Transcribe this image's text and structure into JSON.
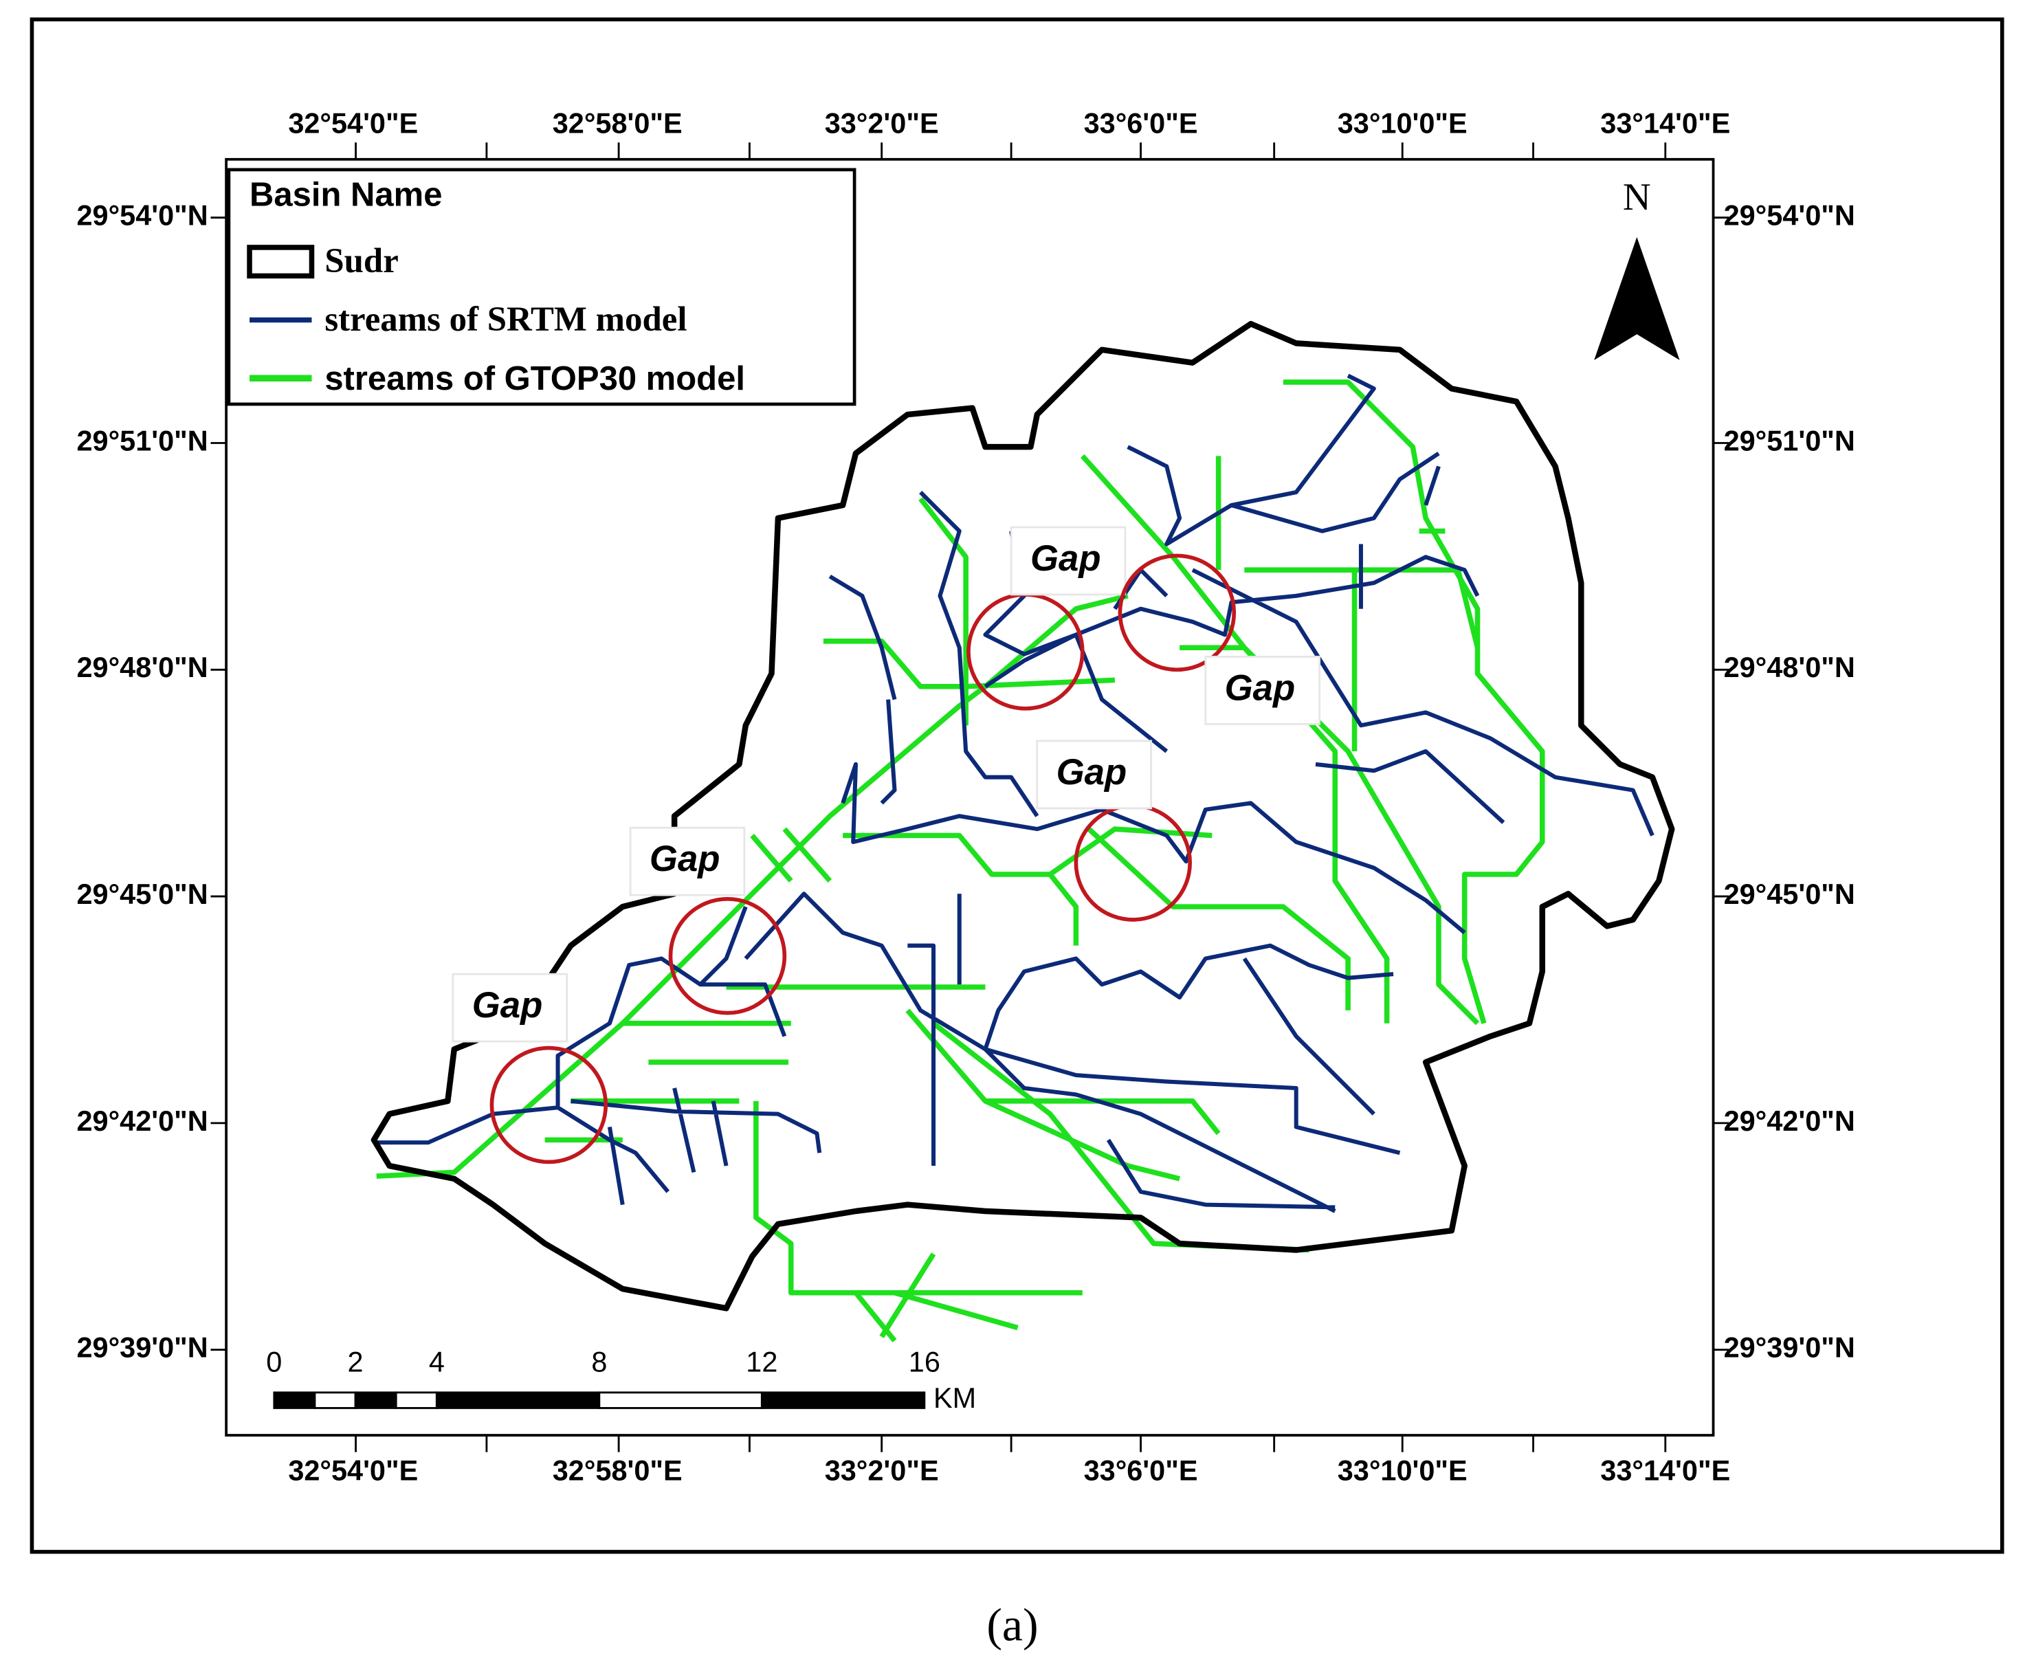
{
  "header": {
    "lon_labels": [
      "32°54'0\"E",
      "32°58'0\"E",
      "33°2'0\"E",
      "33°6'0\"E",
      "33°10'0\"E",
      "33°14'0\"E"
    ],
    "lat_labels": [
      "29°54'0\"N",
      "29°51'0\"N",
      "29°48'0\"N",
      "29°45'0\"N",
      "29°42'0\"N",
      "29°39'0\"N"
    ]
  },
  "legend": {
    "title": "Basin Name",
    "items": [
      "Sudr",
      "streams of SRTM model",
      "streams of GTOP30 model"
    ]
  },
  "north": "N",
  "gap_labels": [
    "Gap",
    "Gap",
    "Gap",
    "Gap",
    "Gap"
  ],
  "scale_bar": {
    "ticks": [
      0,
      2,
      4,
      8,
      12,
      16
    ],
    "unit": "KM"
  },
  "caption": "(a)"
}
